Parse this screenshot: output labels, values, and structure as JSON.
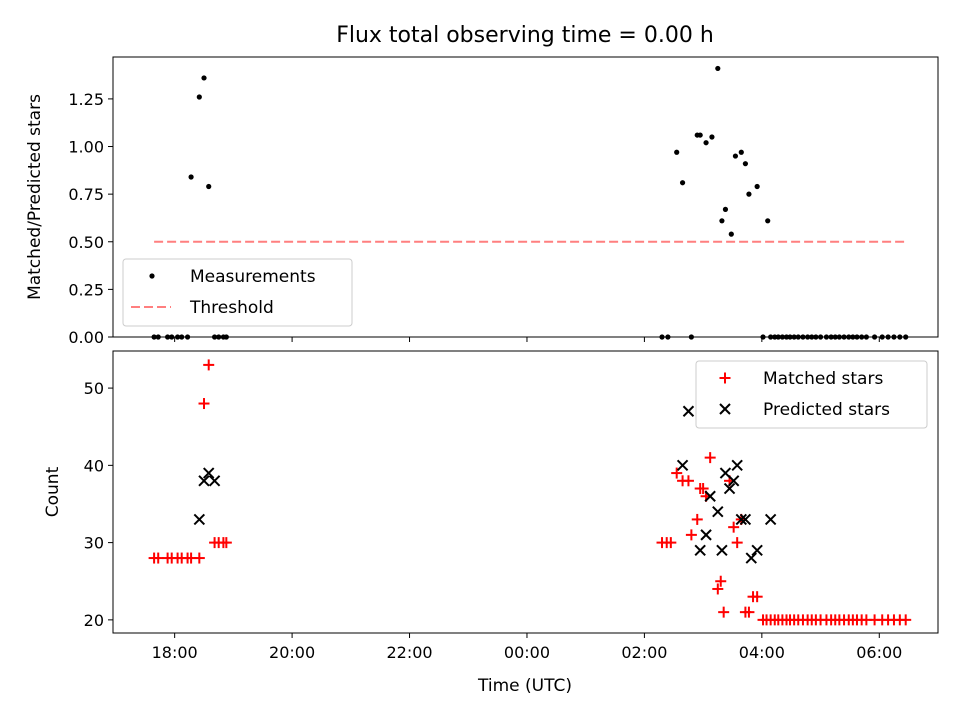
{
  "figure": {
    "title": "Flux total observing time = 0.00 h",
    "xlabel": "Time (UTC)"
  },
  "chart_data": [
    {
      "type": "scatter",
      "ylabel": "Matched/Predicted stars",
      "ylim": [
        0,
        1.47
      ],
      "yticks": [
        0.0,
        0.25,
        0.5,
        0.75,
        1.0,
        1.25
      ],
      "ytick_labels": [
        "0.00",
        "0.25",
        "0.50",
        "0.75",
        "1.00",
        "1.25"
      ],
      "xlim": [
        -1.05,
        13.0
      ],
      "xticks": [
        0,
        2,
        4,
        6,
        8,
        10,
        12
      ],
      "xtick_labels": [],
      "grid": false,
      "legend": "lower-left",
      "series": [
        {
          "name": "Measurements",
          "kind": "scatter",
          "marker": "dot",
          "color": "#000000",
          "x": [
            -0.35,
            -0.28,
            -0.12,
            -0.05,
            0.05,
            0.12,
            0.22,
            0.28,
            0.42,
            0.5,
            0.58,
            0.68,
            0.75,
            0.83,
            0.88,
            8.3,
            8.4,
            8.55,
            8.65,
            8.8,
            8.9,
            8.95,
            9.05,
            9.15,
            9.25,
            9.32,
            9.38,
            9.48,
            9.55,
            9.65,
            9.72,
            9.78,
            9.92,
            10.02,
            10.1,
            10.15,
            10.22,
            10.28,
            10.35,
            10.42,
            10.48,
            10.55,
            10.62,
            10.7,
            10.78,
            10.85,
            10.92,
            11.0,
            11.1,
            11.18,
            11.25,
            11.32,
            11.4,
            11.48,
            11.55,
            11.62,
            11.7,
            11.78,
            11.92,
            12.05,
            12.15,
            12.25,
            12.35,
            12.45
          ],
          "y": [
            0.0,
            0.0,
            0.0,
            0.0,
            0.0,
            0.0,
            0.0,
            0.84,
            1.26,
            1.36,
            0.79,
            0.0,
            0.0,
            0.0,
            0.0,
            0.0,
            0.0,
            0.97,
            0.81,
            0.0,
            1.06,
            1.06,
            1.02,
            1.05,
            1.41,
            0.61,
            0.67,
            0.54,
            0.95,
            0.97,
            0.91,
            0.75,
            0.79,
            0.0,
            0.61,
            0.0,
            0.0,
            0.0,
            0.0,
            0.0,
            0.0,
            0.0,
            0.0,
            0.0,
            0.0,
            0.0,
            0.0,
            0.0,
            0.0,
            0.0,
            0.0,
            0.0,
            0.0,
            0.0,
            0.0,
            0.0,
            0.0,
            0.0,
            0.0,
            0.0,
            0.0,
            0.0,
            0.0,
            0.0
          ]
        },
        {
          "name": "Threshold",
          "kind": "line",
          "dash": true,
          "color": "#ff7f7f",
          "x": [
            -0.35,
            12.45
          ],
          "y": [
            0.5,
            0.5
          ]
        }
      ]
    },
    {
      "type": "scatter",
      "ylabel": "Count",
      "ylim": [
        18.3,
        54.8
      ],
      "yticks": [
        20,
        30,
        40,
        50
      ],
      "ytick_labels": [
        "20",
        "30",
        "40",
        "50"
      ],
      "xlim": [
        -1.05,
        13.0
      ],
      "xticks": [
        0,
        2,
        4,
        6,
        8,
        10,
        12
      ],
      "xtick_labels": [
        "18:00",
        "20:00",
        "22:00",
        "00:00",
        "02:00",
        "04:00",
        "06:00"
      ],
      "grid": false,
      "legend": "upper-right",
      "series": [
        {
          "name": "Matched stars",
          "kind": "scatter",
          "marker": "plus",
          "color": "#ff0000",
          "x": [
            -0.35,
            -0.28,
            -0.12,
            -0.05,
            0.05,
            0.12,
            0.22,
            0.28,
            0.42,
            0.5,
            0.58,
            0.68,
            0.75,
            0.83,
            0.88,
            8.3,
            8.38,
            8.45,
            8.55,
            8.65,
            8.75,
            8.8,
            8.9,
            8.95,
            9.0,
            9.05,
            9.12,
            9.25,
            9.3,
            9.35,
            9.45,
            9.52,
            9.58,
            9.65,
            9.72,
            9.78,
            9.85,
            9.92,
            10.02,
            10.08,
            10.15,
            10.22,
            10.28,
            10.35,
            10.42,
            10.48,
            10.55,
            10.62,
            10.7,
            10.78,
            10.85,
            10.92,
            11.0,
            11.1,
            11.18,
            11.25,
            11.32,
            11.4,
            11.48,
            11.55,
            11.62,
            11.7,
            11.78,
            11.92,
            12.05,
            12.15,
            12.25,
            12.35,
            12.45
          ],
          "y": [
            28,
            28,
            28,
            28,
            28,
            28,
            28,
            28,
            28,
            48,
            53,
            30,
            30,
            30,
            30,
            30,
            30,
            30,
            39,
            38,
            38,
            31,
            33,
            37,
            37,
            36,
            41,
            24,
            25,
            21,
            38,
            32,
            30,
            33,
            21,
            21,
            23,
            23,
            20,
            20,
            20,
            20,
            20,
            20,
            20,
            20,
            20,
            20,
            20,
            20,
            20,
            20,
            20,
            20,
            20,
            20,
            20,
            20,
            20,
            20,
            20,
            20,
            20,
            20,
            20,
            20,
            20,
            20,
            20
          ]
        },
        {
          "name": "Predicted stars",
          "kind": "scatter",
          "marker": "x",
          "color": "#000000",
          "x": [
            0.42,
            0.5,
            0.58,
            0.68,
            8.65,
            8.75,
            8.95,
            9.05,
            9.12,
            9.25,
            9.32,
            9.38,
            9.45,
            9.52,
            9.58,
            9.65,
            9.72,
            9.82,
            9.92,
            10.15
          ],
          "y": [
            33,
            38,
            39,
            38,
            40,
            47,
            29,
            31,
            36,
            34,
            29,
            39,
            37,
            38,
            40,
            33,
            33,
            28,
            29,
            33
          ]
        }
      ]
    }
  ]
}
